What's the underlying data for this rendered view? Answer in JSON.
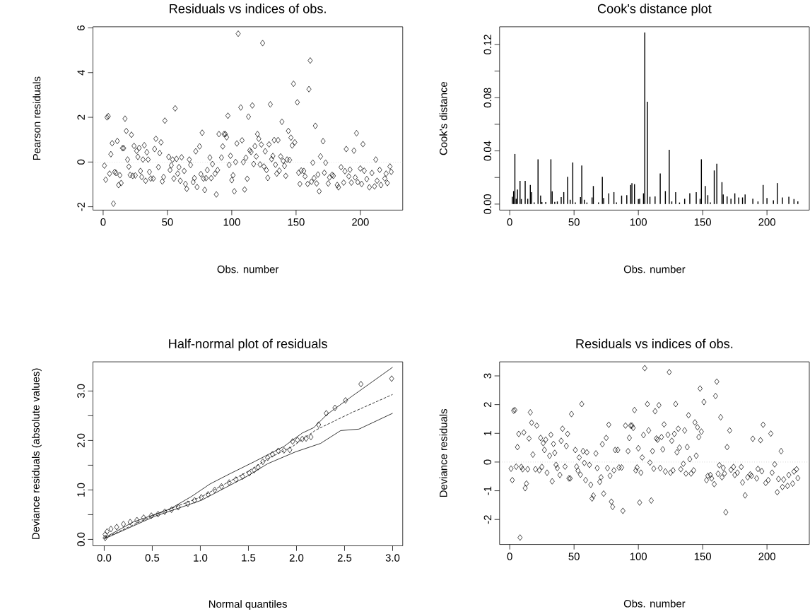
{
  "chart_data": [
    {
      "type": "scatter",
      "title": "Residuals vs indices of obs.",
      "xlabel": "Obs. number",
      "ylabel": "Pearson residuals",
      "marker": "diamond",
      "xlim": [
        -7.92,
        232.92
      ],
      "ylim": [
        -2.15,
        6.05
      ],
      "xticks": [
        0,
        50,
        100,
        150,
        200
      ],
      "yticks": [
        -2,
        0,
        2,
        4,
        6
      ],
      "ref_lines": [
        {
          "axis": "y",
          "value": 0,
          "color": "#bebebe",
          "line_style": "dotted"
        }
      ],
      "series": [
        {
          "color": "#000000",
          "x": [
            1,
            2,
            3,
            4,
            5,
            6,
            7,
            8,
            9,
            10,
            11,
            12,
            13,
            14,
            15,
            16,
            17,
            18,
            19,
            20,
            21,
            22,
            23,
            24,
            25,
            26,
            27,
            28,
            29,
            30,
            31,
            32,
            33,
            34,
            35,
            36,
            37,
            39,
            40,
            41,
            43,
            44,
            45,
            46,
            47,
            48,
            51,
            52,
            53,
            54,
            55,
            56,
            57,
            58,
            59,
            60,
            61,
            63,
            64,
            65,
            67,
            68,
            70,
            71,
            72,
            73,
            75,
            76,
            77,
            78,
            79,
            80,
            81,
            83,
            84,
            85,
            87,
            88,
            89,
            90,
            92,
            93,
            94,
            95,
            96,
            97,
            98,
            99,
            100,
            101,
            102,
            103,
            104,
            105,
            107,
            108,
            109,
            110,
            111,
            112,
            113,
            114,
            115,
            116,
            117,
            118,
            119,
            120,
            121,
            122,
            123,
            124,
            125,
            126,
            127,
            128,
            129,
            130,
            131,
            132,
            133,
            134,
            135,
            136,
            137,
            138,
            139,
            140,
            141,
            142,
            143,
            144,
            145,
            146,
            147,
            148,
            149,
            151,
            152,
            153,
            154,
            156,
            157,
            159,
            160,
            161,
            162,
            163,
            164,
            165,
            166,
            167,
            168,
            169,
            171,
            172,
            173,
            175,
            176,
            178,
            179,
            182,
            183,
            185,
            187,
            188,
            189,
            191,
            192,
            193,
            195,
            196,
            197,
            198,
            200,
            201,
            202,
            203,
            205,
            207,
            209,
            211,
            212,
            213,
            215,
            216,
            219,
            220,
            221,
            223,
            224
          ],
          "values": [
            -0.16,
            -0.79,
            2.0,
            2.05,
            -0.52,
            0.35,
            0.84,
            -1.86,
            -0.44,
            -0.49,
            0.94,
            -1.03,
            -0.59,
            -0.94,
            0.62,
            0.62,
            1.94,
            1.39,
            0.11,
            -0.21,
            -0.58,
            1.22,
            -0.62,
            0.72,
            -0.6,
            0.5,
            0.23,
            0.63,
            -0.4,
            -0.67,
            0.11,
            0.75,
            -0.84,
            0.44,
            0.11,
            -0.44,
            -0.74,
            -0.74,
            0.58,
            1.04,
            -0.23,
            0.4,
            0.88,
            -0.87,
            -0.67,
            1.85,
            0.23,
            -0.36,
            -0.15,
            0.11,
            -0.74,
            2.4,
            0.14,
            -0.52,
            -0.23,
            -0.84,
            0.21,
            -0.4,
            -0.98,
            -1.2,
            0.11,
            -0.13,
            -0.9,
            -0.72,
            0.48,
            -1.12,
            0.7,
            -0.54,
            1.31,
            -0.74,
            -1.25,
            -0.72,
            -0.36,
            0.2,
            -0.72,
            -0.09,
            -0.52,
            -1.45,
            -0.36,
            1.25,
            0.2,
            0.7,
            1.25,
            1.25,
            1.11,
            2.07,
            -0.13,
            0.28,
            -0.81,
            -0.59,
            -1.31,
            0.0,
            0.83,
            5.74,
            2.44,
            0.97,
            0.0,
            -1.23,
            0.19,
            -0.75,
            2.03,
            0.52,
            0.45,
            2.53,
            -0.09,
            0.71,
            0.25,
            1.25,
            1.04,
            -0.11,
            0.78,
            5.32,
            -0.2,
            0.48,
            -0.36,
            -0.71,
            0.79,
            2.58,
            0.13,
            0.27,
            0.98,
            -0.12,
            -0.52,
            0.98,
            -0.39,
            0.25,
            1.8,
            0.05,
            -0.17,
            -0.62,
            0.11,
            1.39,
            0.09,
            1.09,
            0.74,
            3.5,
            0.88,
            2.67,
            -0.48,
            -0.98,
            -0.38,
            -0.4,
            -0.64,
            -0.98,
            3.26,
            4.54,
            -0.88,
            -0.03,
            -0.72,
            1.62,
            -0.96,
            -0.56,
            -1.31,
            0.25,
            0.93,
            -0.48,
            -0.03,
            -0.96,
            -0.69,
            -0.57,
            -0.62,
            -1.03,
            -1.13,
            -0.23,
            -0.92,
            -0.41,
            0.58,
            -0.64,
            -0.34,
            -0.92,
            0.51,
            -0.69,
            1.29,
            -0.9,
            -0.29,
            -0.98,
            0.8,
            -0.39,
            -0.76,
            -1.13,
            -0.49,
            -1.09,
            0.11,
            -0.84,
            -0.35,
            -1.03,
            -0.74,
            -0.52,
            -0.94,
            -0.2,
            -0.44
          ]
        }
      ]
    },
    {
      "type": "bar",
      "title": "Cook's distance plot",
      "xlabel": "Obs. number",
      "ylabel": "Cook's distance",
      "xlim": [
        -7.92,
        232.92
      ],
      "ylim": [
        -0.0045,
        0.1333
      ],
      "xticks": [
        0,
        50,
        100,
        150,
        200
      ],
      "yticks": [
        {
          "value": 0,
          "label": "0.00"
        },
        {
          "value": 0.02,
          "label": null
        },
        {
          "value": 0.04,
          "label": "0.04"
        },
        {
          "value": 0.06,
          "label": null
        },
        {
          "value": 0.08,
          "label": "0.08"
        },
        {
          "value": 0.1,
          "label": null
        },
        {
          "value": 0.12,
          "label": "0.12"
        }
      ],
      "series": [
        {
          "color": "#000000",
          "x": [
            2,
            3,
            4,
            5,
            6,
            8,
            9,
            12,
            14,
            16,
            17,
            19,
            22,
            24,
            25,
            28,
            32,
            33,
            35,
            37,
            40,
            42,
            45,
            47,
            49,
            51,
            55,
            56,
            58,
            60,
            64,
            65,
            69,
            72,
            73,
            77,
            81,
            83,
            87,
            91,
            94,
            95,
            97,
            100,
            101,
            104,
            105,
            107,
            109,
            113,
            117,
            121,
            124,
            126,
            129,
            132,
            136,
            140,
            145,
            148,
            149,
            152,
            154,
            156,
            159,
            161,
            165,
            166,
            169,
            172,
            175,
            178,
            181,
            183,
            189,
            193,
            197,
            200,
            205,
            208,
            212,
            217,
            221,
            224
          ],
          "values": [
            0.0055,
            0.0098,
            0.0377,
            0.004,
            0.011,
            0.0175,
            0.0038,
            0.0175,
            0.004,
            0.0144,
            0.009,
            0.0012,
            0.0337,
            0.0064,
            0.0015,
            0.0015,
            0.0337,
            0.0096,
            0.0017,
            0.002,
            0.0052,
            0.009,
            0.0205,
            0.0033,
            0.0313,
            0.0012,
            0.0052,
            0.029,
            0.0033,
            0.0012,
            0.005,
            0.0136,
            0.0012,
            0.0205,
            0.0046,
            0.0081,
            0.009,
            0.0012,
            0.0064,
            0.0067,
            0.0144,
            0.0158,
            0.015,
            0.0038,
            0.004,
            0.0081,
            0.129,
            0.077,
            0.0055,
            0.0058,
            0.023,
            0.0098,
            0.0408,
            0.002,
            0.009,
            0.0012,
            0.004,
            0.0081,
            0.009,
            0.004,
            0.0337,
            0.0136,
            0.0067,
            0.0012,
            0.0253,
            0.0304,
            0.0165,
            0.0072,
            0.0058,
            0.004,
            0.0081,
            0.005,
            0.005,
            0.0072,
            0.004,
            0.002,
            0.0144,
            0.0046,
            0.0029,
            0.0158,
            0.005,
            0.0055,
            0.0038,
            0.002
          ]
        }
      ]
    },
    {
      "type": "scatter",
      "title": "Half-normal plot of residuals",
      "xlabel": "Normal quantiles",
      "ylabel": "Deviance residuals (absolute values)",
      "marker": "diamond",
      "xlim": [
        -0.117,
        3.105
      ],
      "ylim": [
        -0.13,
        3.59
      ],
      "xticks": [
        {
          "value": 0,
          "label": "0.0"
        },
        {
          "value": 0.5,
          "label": "0.5"
        },
        {
          "value": 1,
          "label": "1.0"
        },
        {
          "value": 1.5,
          "label": "1.5"
        },
        {
          "value": 2,
          "label": "2.0"
        },
        {
          "value": 2.5,
          "label": "2.5"
        },
        {
          "value": 3,
          "label": "3.0"
        }
      ],
      "yticks": [
        {
          "value": 0,
          "label": "0.0"
        },
        {
          "value": 0.5,
          "label": null
        },
        {
          "value": 1,
          "label": "1.0"
        },
        {
          "value": 1.5,
          "label": null
        },
        {
          "value": 2,
          "label": "2.0"
        },
        {
          "value": 2.5,
          "label": null
        },
        {
          "value": 3,
          "label": "3.0"
        }
      ],
      "series": [
        {
          "color": "#000000",
          "x": [
            0.01,
            0.01,
            0.03,
            0.07,
            0.13,
            0.2,
            0.27,
            0.34,
            0.41,
            0.49,
            0.56,
            0.63,
            0.7,
            0.77,
            0.87,
            0.94,
            1.01,
            1.08,
            1.15,
            1.22,
            1.3,
            1.37,
            1.44,
            1.51,
            1.56,
            1.6,
            1.65,
            1.7,
            1.75,
            1.81,
            1.87,
            1.93,
            1.96,
            2.01,
            2.06,
            2.1,
            2.15,
            2.23,
            2.31,
            2.4,
            2.51,
            2.67,
            2.99
          ],
          "values": [
            0.03,
            0.1,
            0.16,
            0.21,
            0.25,
            0.31,
            0.35,
            0.39,
            0.44,
            0.48,
            0.51,
            0.56,
            0.6,
            0.65,
            0.72,
            0.79,
            0.85,
            0.91,
            1.0,
            1.07,
            1.15,
            1.21,
            1.27,
            1.34,
            1.4,
            1.46,
            1.57,
            1.65,
            1.72,
            1.79,
            1.8,
            1.81,
            1.98,
            2.01,
            2.03,
            2.04,
            2.07,
            2.32,
            2.55,
            2.66,
            2.81,
            3.14,
            3.25
          ]
        },
        {
          "type": "line",
          "line_style": "solid",
          "marker": "none",
          "color": "#000000",
          "x": [
            0,
            0.3,
            0.68,
            0.91,
            1.1,
            1.3,
            1.56,
            1.87,
            2.06,
            2.18,
            2.32,
            2.56,
            3.0
          ],
          "values": [
            0.03,
            0.35,
            0.61,
            0.87,
            1.12,
            1.32,
            1.57,
            1.88,
            2.15,
            2.26,
            2.53,
            2.87,
            3.48
          ]
        },
        {
          "type": "line",
          "line_style": "dashed",
          "marker": "none",
          "color": "#000000",
          "x": [
            0,
            0.53,
            1.01,
            1.49,
            1.72,
            1.96,
            2.2,
            2.56,
            3.0
          ],
          "values": [
            0.02,
            0.5,
            0.86,
            1.37,
            1.65,
            1.88,
            2.21,
            2.55,
            2.93
          ]
        },
        {
          "type": "line",
          "line_style": "solid",
          "marker": "none",
          "color": "#000000",
          "x": [
            0,
            0.53,
            1.01,
            1.49,
            1.7,
            1.99,
            2.25,
            2.46,
            2.65,
            3.0
          ],
          "values": [
            0.01,
            0.47,
            0.79,
            1.28,
            1.53,
            1.77,
            1.94,
            2.2,
            2.23,
            2.55
          ]
        }
      ]
    },
    {
      "type": "scatter",
      "title": "Residuals vs indices of obs.",
      "xlabel": "Obs. number",
      "ylabel": "Deviance residuals",
      "marker": "diamond",
      "xlim": [
        -7.92,
        232.92
      ],
      "ylim": [
        -2.87,
        3.49
      ],
      "xticks": [
        0,
        50,
        100,
        150,
        200
      ],
      "yticks": [
        -2,
        -1,
        0,
        1,
        2,
        3
      ],
      "ref_lines": [
        {
          "axis": "y",
          "value": 0,
          "color": "#bebebe",
          "line_style": "dotted"
        }
      ],
      "series": [
        {
          "color": "#000000",
          "x": [
            1,
            2,
            3,
            4,
            5,
            6,
            7,
            8,
            9,
            10,
            11,
            12,
            13,
            14,
            15,
            16,
            17,
            18,
            20,
            21,
            23,
            24,
            25,
            26,
            27,
            28,
            29,
            31,
            32,
            33,
            34,
            35,
            36,
            37,
            39,
            40,
            41,
            43,
            44,
            45,
            46,
            47,
            48,
            51,
            52,
            53,
            54,
            55,
            56,
            57,
            58,
            59,
            60,
            62,
            63,
            64,
            65,
            67,
            68,
            70,
            71,
            72,
            73,
            75,
            76,
            77,
            78,
            79,
            80,
            81,
            82,
            84,
            85,
            87,
            88,
            90,
            92,
            93,
            94,
            95,
            96,
            97,
            98,
            99,
            100,
            101,
            102,
            103,
            104,
            105,
            107,
            108,
            109,
            110,
            111,
            112,
            113,
            114,
            115,
            116,
            117,
            118,
            119,
            120,
            121,
            123,
            124,
            125,
            126,
            127,
            128,
            129,
            130,
            131,
            132,
            133,
            135,
            136,
            137,
            138,
            139,
            140,
            141,
            143,
            144,
            145,
            146,
            147,
            148,
            149,
            151,
            153,
            154,
            156,
            157,
            159,
            160,
            161,
            162,
            163,
            164,
            165,
            166,
            167,
            168,
            169,
            171,
            172,
            174,
            175,
            177,
            180,
            181,
            183,
            185,
            187,
            188,
            189,
            192,
            193,
            195,
            196,
            197,
            199,
            201,
            203,
            204,
            206,
            208,
            209,
            211,
            212,
            213,
            216,
            217,
            220,
            221,
            223,
            224
          ],
          "values": [
            -0.23,
            -0.63,
            1.79,
            1.81,
            -0.16,
            0.52,
            0.98,
            -2.63,
            -0.17,
            -0.25,
            1.03,
            -0.91,
            -0.75,
            -0.25,
            0.82,
            1.73,
            1.37,
            0.26,
            -0.25,
            1.27,
            -0.29,
            0.84,
            -0.17,
            0.66,
            0.42,
            0.78,
            -0.37,
            0.22,
            0.95,
            -0.67,
            0.63,
            0.32,
            -0.1,
            -0.21,
            -0.45,
            0.74,
            1.16,
            -0.16,
            0.56,
            0.98,
            -0.57,
            -0.57,
            1.67,
            0.42,
            -0.16,
            -0.3,
            0.16,
            -0.44,
            2.02,
            0.38,
            -0.03,
            -0.63,
            0.34,
            -0.1,
            -0.79,
            -1.27,
            -1.17,
            0.3,
            -0.21,
            -0.69,
            -0.53,
            0.62,
            -1.1,
            0.84,
            -0.21,
            1.3,
            -0.48,
            -1.38,
            -1.56,
            -0.29,
            0.42,
            0.42,
            -0.19,
            -0.19,
            -1.7,
            1.27,
            0.38,
            0.84,
            1.27,
            1.27,
            1.19,
            1.81,
            -0.29,
            -0.19,
            0.48,
            -1.41,
            -0.37,
            0.16,
            0.94,
            3.27,
            2.02,
            1.1,
            -0.02,
            -1.34,
            0.38,
            -0.23,
            1.77,
            0.82,
            0.78,
            1.98,
            -0.21,
            0.87,
            0.44,
            1.31,
            -0.33,
            0.95,
            3.13,
            -0.37,
            0.74,
            -0.29,
            0.98,
            2.02,
            0.34,
            1.16,
            0.5,
            -0.25,
            -0.06,
            1.1,
            -0.4,
            0.52,
            1.63,
            0.1,
            -0.4,
            -0.29,
            1.38,
            0.22,
            1.21,
            0.87,
            2.56,
            1.06,
            2.09,
            -0.63,
            -0.48,
            -0.45,
            -0.57,
            -0.77,
            2.3,
            2.8,
            -0.41,
            -0.11,
            1.56,
            -0.53,
            -0.2,
            -0.4,
            -1.75,
            0.52,
            1.1,
            -0.27,
            -0.17,
            -0.45,
            -0.37,
            -0.17,
            -0.71,
            -1.16,
            -0.53,
            -0.43,
            -0.48,
            0.81,
            -0.57,
            -0.24,
            0.76,
            -0.32,
            1.3,
            -0.73,
            -0.63,
            0.99,
            -0.37,
            -0.08,
            -1.05,
            -0.59,
            0.38,
            -0.87,
            -0.61,
            -0.83,
            -0.45,
            -0.75,
            -0.33,
            -0.25,
            -0.56
          ]
        }
      ]
    }
  ]
}
